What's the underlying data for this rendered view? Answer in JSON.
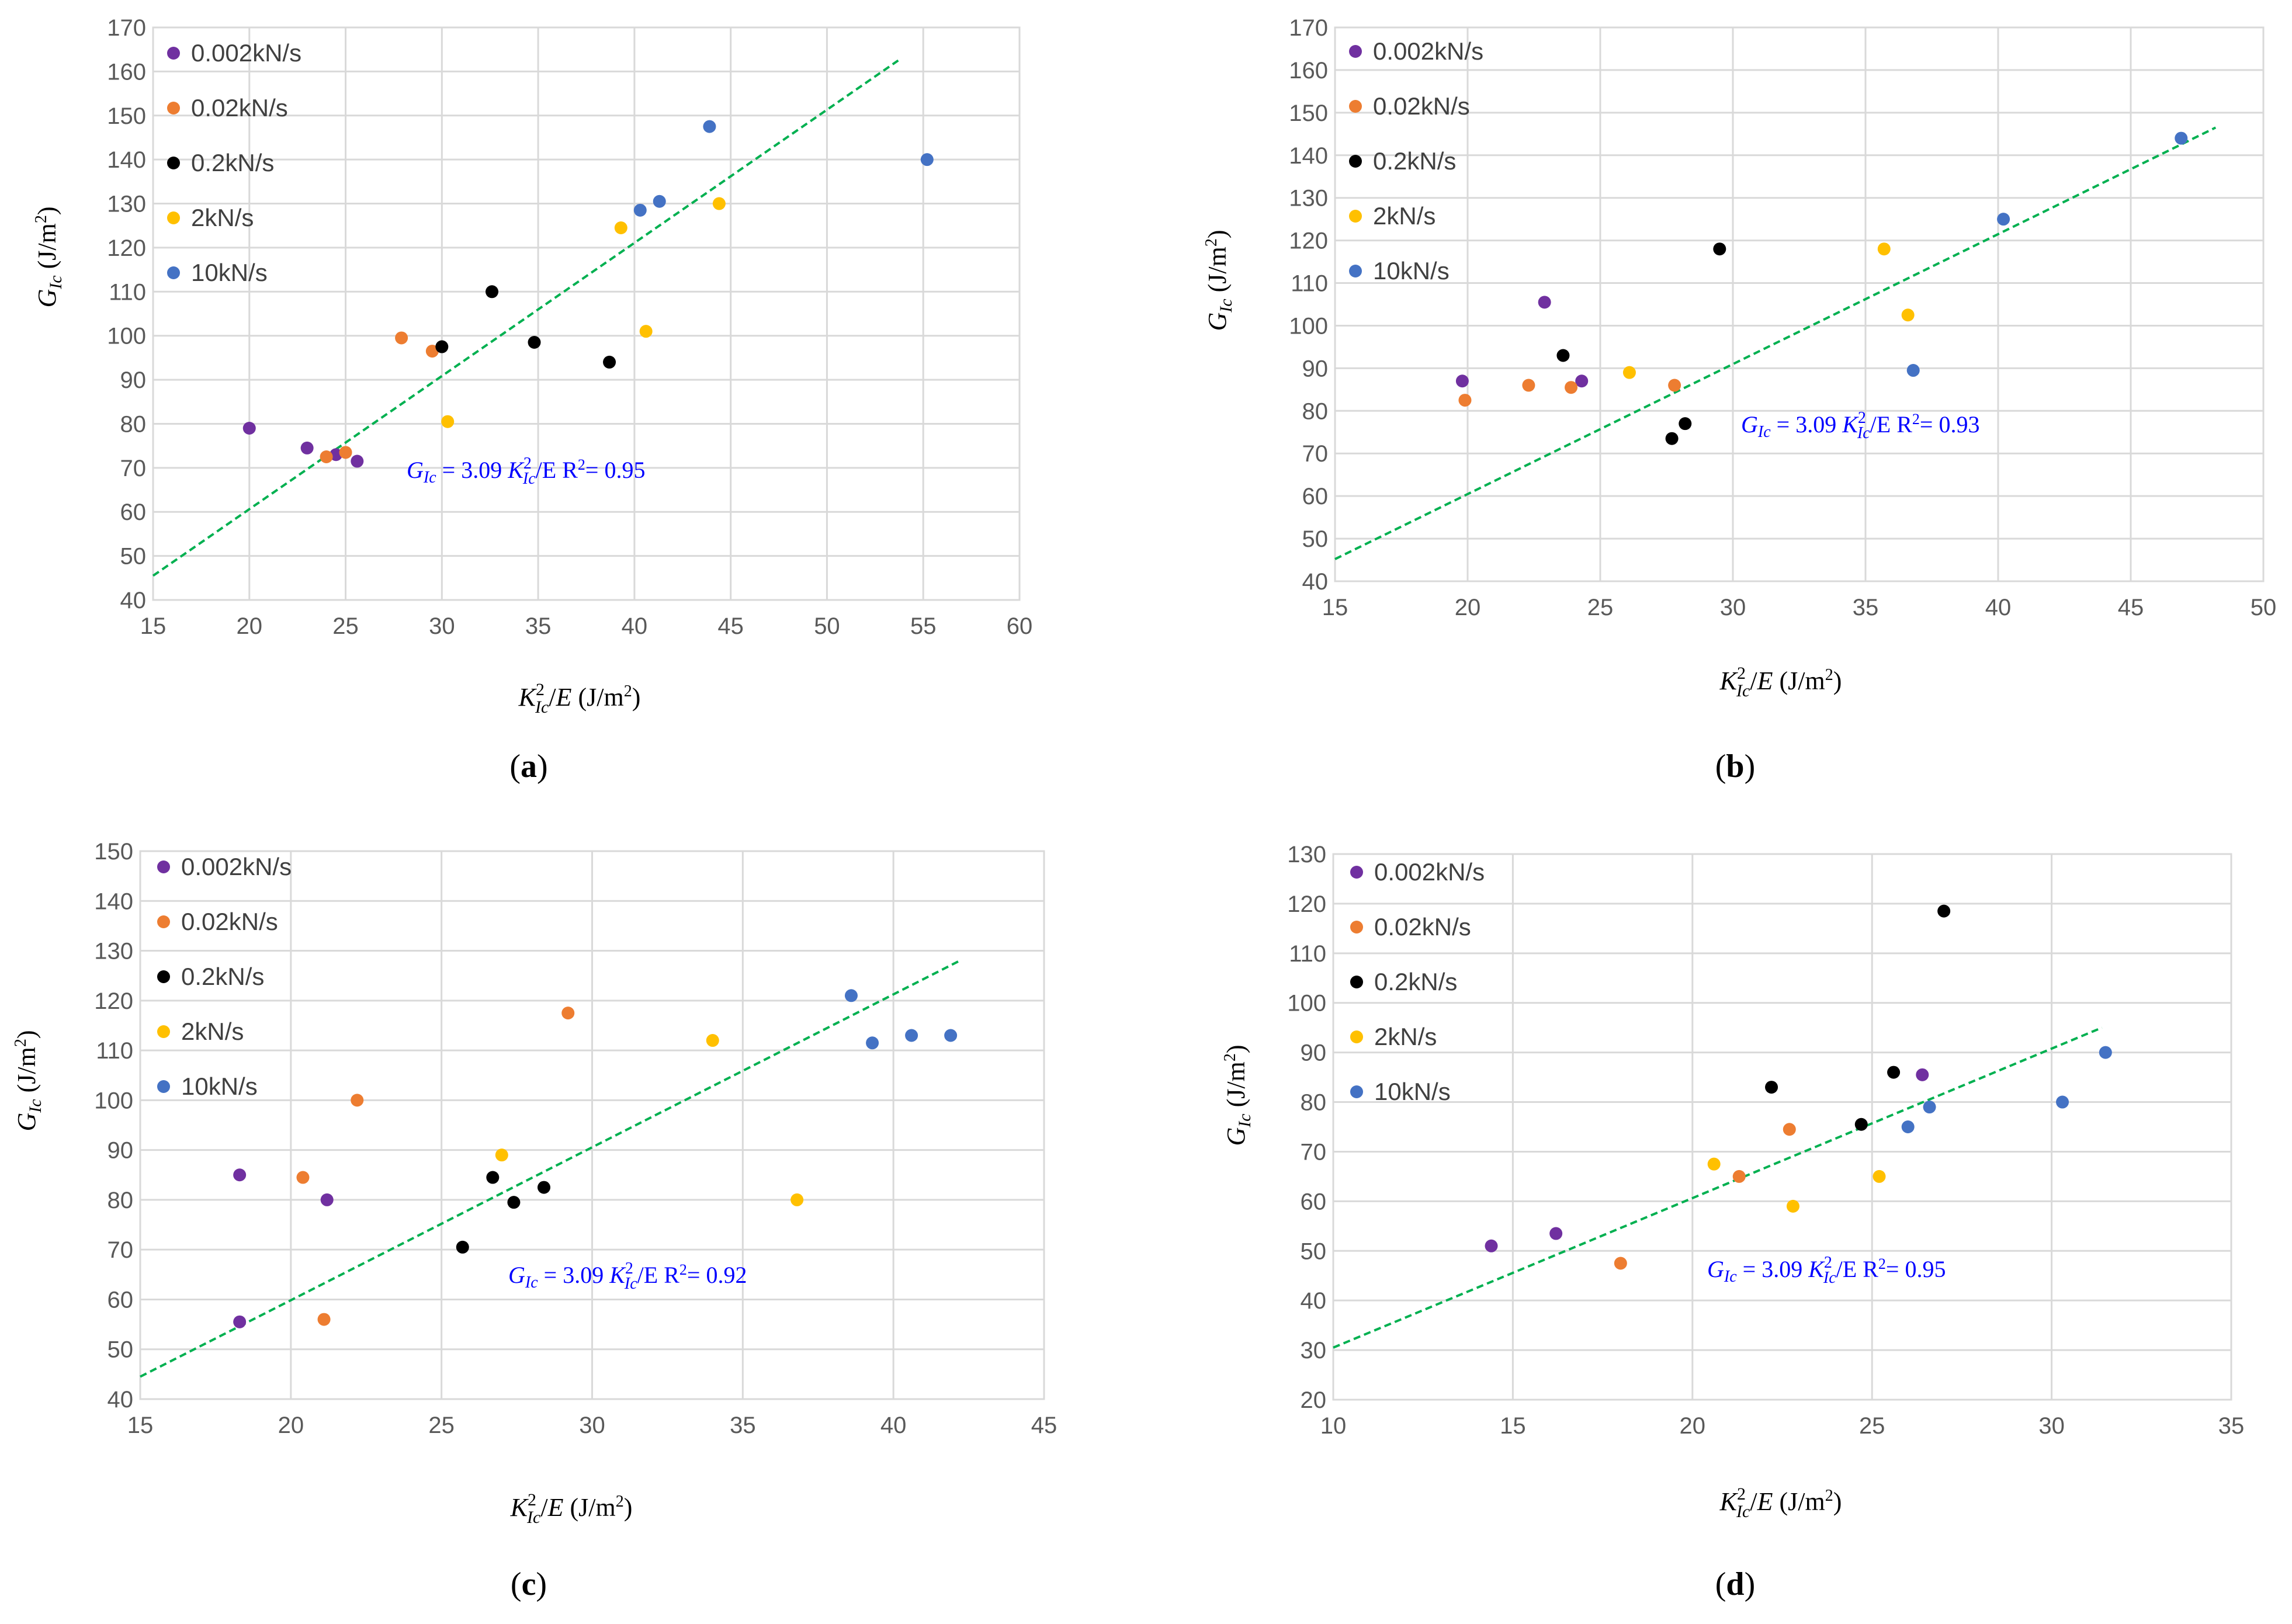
{
  "legend": [
    "0.002kN/s",
    "0.02kN/s",
    "0.2kN/s",
    "2kN/s",
    "10kN/s"
  ],
  "series_colors": [
    "#7030a0",
    "#ed7d31",
    "#000000",
    "#ffc000",
    "#4472c4"
  ],
  "trendline_color": "#00b050",
  "axis_titles": {
    "y_main": "G",
    "y_sub": "Ic",
    "y_units": "(J/m",
    "y_sup": "2",
    "y_close": ")",
    "x_main": "K",
    "x_sup": "2",
    "x_sub": "Ic",
    "x_div": "/",
    "x_e": "E",
    "x_units": "(J/m",
    "x_units_sup": "2",
    "x_close": ")"
  },
  "equation_parts": {
    "g": "G",
    "ic": "Ic",
    "eq": "= 3.09",
    "k": "K",
    "sup": "2",
    "ic2": "Ic",
    "tail": "/E",
    "r2": "R",
    "r2sup": "2",
    "r2eq": "= "
  },
  "chart_data": [
    {
      "type": "scatter",
      "panel_label": "a",
      "xlim": [
        15,
        60
      ],
      "xticks": [
        15,
        20,
        25,
        30,
        35,
        40,
        45,
        50,
        55,
        60
      ],
      "ylim": [
        40,
        170
      ],
      "yticks": [
        40,
        50,
        60,
        70,
        80,
        90,
        100,
        110,
        120,
        130,
        140,
        150,
        160,
        170
      ],
      "xlabel": "K_Ic^2/E (J/m^2)",
      "ylabel": "G_Ic (J/m^2)",
      "equation": "G_Ic = 3.09 K_Ic^2/E",
      "r2": "0.95",
      "trendline": {
        "x": [
          15,
          53.7
        ],
        "y": [
          45.5,
          162.5
        ]
      },
      "series": [
        {
          "name": "0.002kN/s",
          "points": [
            [
              20,
              79
            ],
            [
              23,
              74.5
            ],
            [
              24.5,
              73
            ],
            [
              25.6,
              71.5
            ]
          ]
        },
        {
          "name": "0.02kN/s",
          "points": [
            [
              24,
              72.5
            ],
            [
              25,
              73.5
            ],
            [
              27.9,
              99.5
            ],
            [
              29.5,
              96.5
            ]
          ]
        },
        {
          "name": "0.2kN/s",
          "points": [
            [
              30,
              97.5
            ],
            [
              32.6,
              110
            ],
            [
              34.8,
              98.5
            ],
            [
              38.7,
              94
            ]
          ]
        },
        {
          "name": "2kN/s",
          "points": [
            [
              30.3,
              80.5
            ],
            [
              39.3,
              124.5
            ],
            [
              40.6,
              101
            ],
            [
              44.4,
              130
            ]
          ]
        },
        {
          "name": "10kN/s",
          "points": [
            [
              40.3,
              128.5
            ],
            [
              41.3,
              130.5
            ],
            [
              43.9,
              147.5
            ],
            [
              55.2,
              140
            ]
          ]
        }
      ]
    },
    {
      "type": "scatter",
      "panel_label": "b",
      "xlim": [
        15,
        50
      ],
      "xticks": [
        15,
        20,
        25,
        30,
        35,
        40,
        45,
        50
      ],
      "ylim": [
        40,
        170
      ],
      "yticks": [
        40,
        50,
        60,
        70,
        80,
        90,
        100,
        110,
        120,
        130,
        140,
        150,
        160,
        170
      ],
      "xlabel": "K_Ic^2/E (J/m^2)",
      "ylabel": "G_Ic (J/m^2)",
      "equation": "G_Ic = 3.09 K_Ic^2/E",
      "r2": "0.93",
      "trendline": {
        "x": [
          15,
          48.2
        ],
        "y": [
          45.2,
          146.5
        ]
      },
      "series": [
        {
          "name": "0.002kN/s",
          "points": [
            [
              19.8,
              87
            ],
            [
              22.9,
              105.5
            ],
            [
              24.3,
              87
            ]
          ]
        },
        {
          "name": "0.02kN/s",
          "points": [
            [
              19.9,
              82.5
            ],
            [
              22.3,
              86
            ],
            [
              23.9,
              85.5
            ],
            [
              27.8,
              86
            ]
          ]
        },
        {
          "name": "0.2kN/s",
          "points": [
            [
              23.6,
              93
            ],
            [
              27.7,
              73.5
            ],
            [
              28.2,
              77
            ],
            [
              29.5,
              118
            ]
          ]
        },
        {
          "name": "2kN/s",
          "points": [
            [
              26.1,
              89
            ],
            [
              35.7,
              118
            ],
            [
              36.6,
              102.5
            ]
          ]
        },
        {
          "name": "10kN/s",
          "points": [
            [
              36.8,
              89.5
            ],
            [
              40.2,
              125
            ],
            [
              46.9,
              144
            ]
          ]
        }
      ]
    },
    {
      "type": "scatter",
      "panel_label": "c",
      "xlim": [
        15,
        45
      ],
      "xticks": [
        15,
        20,
        25,
        30,
        35,
        40,
        45
      ],
      "ylim": [
        40,
        150
      ],
      "yticks": [
        40,
        50,
        60,
        70,
        80,
        90,
        100,
        110,
        120,
        130,
        140,
        150
      ],
      "xlabel": "K_Ic^2/E (J/m^2)",
      "ylabel": "G_Ic (J/m^2)",
      "equation": "G_Ic = 3.09 K_Ic^2/E",
      "r2": "0.92",
      "trendline": {
        "x": [
          15,
          42.2
        ],
        "y": [
          44.5,
          128
        ]
      },
      "series": [
        {
          "name": "0.002kN/s",
          "points": [
            [
              18.3,
              85
            ],
            [
              18.3,
              55.5
            ],
            [
              21.2,
              80
            ]
          ]
        },
        {
          "name": "0.02kN/s",
          "points": [
            [
              20.4,
              84.5
            ],
            [
              21.1,
              56
            ],
            [
              22.2,
              100
            ],
            [
              29.2,
              117.5
            ]
          ]
        },
        {
          "name": "0.2kN/s",
          "points": [
            [
              25.7,
              70.5
            ],
            [
              26.7,
              84.5
            ],
            [
              27.4,
              79.5
            ],
            [
              28.4,
              82.5
            ]
          ]
        },
        {
          "name": "2kN/s",
          "points": [
            [
              27,
              89
            ],
            [
              34,
              112
            ],
            [
              36.8,
              80
            ]
          ]
        },
        {
          "name": "10kN/s",
          "points": [
            [
              38.6,
              121
            ],
            [
              39.3,
              111.5
            ],
            [
              40.6,
              113
            ],
            [
              41.9,
              113
            ]
          ]
        }
      ]
    },
    {
      "type": "scatter",
      "panel_label": "d",
      "xlim": [
        10,
        35
      ],
      "xticks": [
        10,
        15,
        20,
        25,
        30,
        35
      ],
      "ylim": [
        20,
        130
      ],
      "yticks": [
        20,
        30,
        40,
        50,
        60,
        70,
        80,
        90,
        100,
        110,
        120,
        130
      ],
      "xlabel": "K_Ic^2/E (J/m^2)",
      "ylabel": "G_Ic (J/m^2)",
      "equation": "G_Ic = 3.09 K_Ic^2/E",
      "r2": "0.95",
      "trendline": {
        "x": [
          10,
          31.4
        ],
        "y": [
          30.5,
          95
        ]
      },
      "series": [
        {
          "name": "0.002kN/s",
          "points": [
            [
              14.4,
              51
            ],
            [
              16.2,
              53.5
            ],
            [
              26.4,
              85.5
            ]
          ]
        },
        {
          "name": "0.02kN/s",
          "points": [
            [
              18,
              47.5
            ],
            [
              21.3,
              65
            ],
            [
              22.7,
              74.5
            ]
          ]
        },
        {
          "name": "0.2kN/s",
          "points": [
            [
              22.2,
              83
            ],
            [
              24.7,
              75.5
            ],
            [
              25.6,
              86
            ],
            [
              27,
              118.5
            ]
          ]
        },
        {
          "name": "2kN/s",
          "points": [
            [
              20.6,
              67.5
            ],
            [
              22.8,
              59
            ],
            [
              25.2,
              65
            ]
          ]
        },
        {
          "name": "10kN/s",
          "points": [
            [
              26,
              75
            ],
            [
              26.6,
              79
            ],
            [
              30.3,
              80
            ],
            [
              31.5,
              90
            ]
          ]
        }
      ]
    }
  ]
}
